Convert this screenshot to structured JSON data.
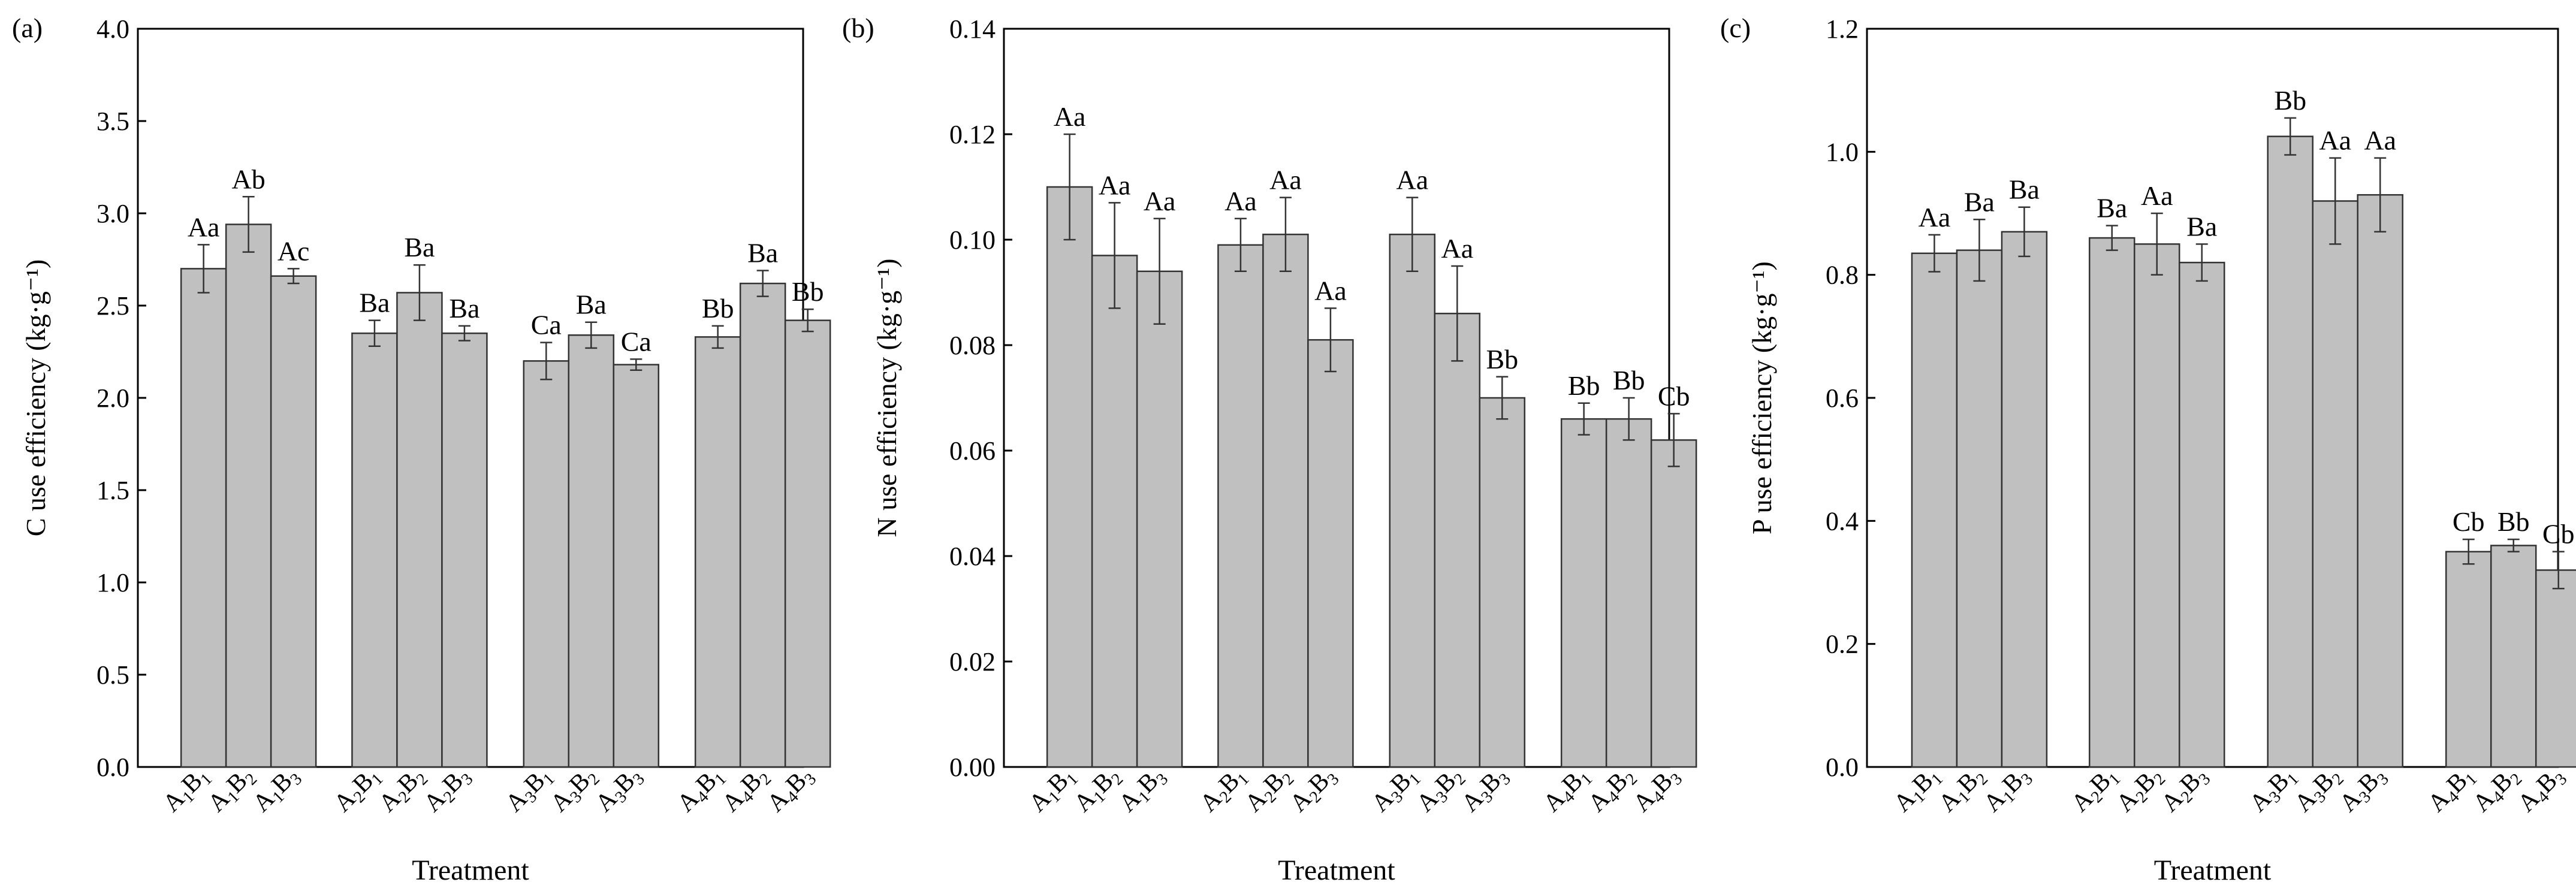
{
  "colors": {
    "bar_fill": "#c0c0c0",
    "bar_stroke": "#333333",
    "axis": "#000000"
  },
  "chart_data": [
    {
      "panel_label": "(a)",
      "type": "bar",
      "title": "",
      "xlabel": "Treatment",
      "ylabel": "C use efficiency (kg·g⁻¹)",
      "ylim": [
        0,
        4.0
      ],
      "yticks": [
        0,
        0.5,
        1.0,
        1.5,
        2.0,
        2.5,
        3.0,
        3.5,
        4.0
      ],
      "ytick_labels": [
        "0.0",
        "0.5",
        "1.0",
        "1.5",
        "2.0",
        "2.5",
        "3.0",
        "3.5",
        "4.0"
      ],
      "groups": [
        {
          "bars": [
            {
              "a": "1",
              "b": "1",
              "value": 2.7,
              "error": 0.13,
              "letter": "Aa"
            },
            {
              "a": "1",
              "b": "2",
              "value": 2.94,
              "error": 0.15,
              "letter": "Ab"
            },
            {
              "a": "1",
              "b": "3",
              "value": 2.66,
              "error": 0.04,
              "letter": "Ac"
            }
          ]
        },
        {
          "bars": [
            {
              "a": "2",
              "b": "1",
              "value": 2.35,
              "error": 0.07,
              "letter": "Ba"
            },
            {
              "a": "2",
              "b": "2",
              "value": 2.57,
              "error": 0.15,
              "letter": "Ba"
            },
            {
              "a": "2",
              "b": "3",
              "value": 2.35,
              "error": 0.04,
              "letter": "Ba"
            }
          ]
        },
        {
          "bars": [
            {
              "a": "3",
              "b": "1",
              "value": 2.2,
              "error": 0.1,
              "letter": "Ca"
            },
            {
              "a": "3",
              "b": "2",
              "value": 2.34,
              "error": 0.07,
              "letter": "Ba"
            },
            {
              "a": "3",
              "b": "3",
              "value": 2.18,
              "error": 0.03,
              "letter": "Ca"
            }
          ]
        },
        {
          "bars": [
            {
              "a": "4",
              "b": "1",
              "value": 2.33,
              "error": 0.06,
              "letter": "Bb"
            },
            {
              "a": "4",
              "b": "2",
              "value": 2.62,
              "error": 0.07,
              "letter": "Ba"
            },
            {
              "a": "4",
              "b": "3",
              "value": 2.42,
              "error": 0.06,
              "letter": "Bb"
            }
          ]
        }
      ]
    },
    {
      "panel_label": "(b)",
      "type": "bar",
      "title": "",
      "xlabel": "Treatment",
      "ylabel": "N use efficiency (kg·g⁻¹)",
      "ylim": [
        0,
        0.14
      ],
      "yticks": [
        0,
        0.02,
        0.04,
        0.06,
        0.08,
        0.1,
        0.12,
        0.14
      ],
      "ytick_labels": [
        "0.00",
        "0.02",
        "0.04",
        "0.06",
        "0.08",
        "0.10",
        "0.12",
        "0.14"
      ],
      "groups": [
        {
          "bars": [
            {
              "a": "1",
              "b": "1",
              "value": 0.11,
              "error": 0.01,
              "letter": "Aa"
            },
            {
              "a": "1",
              "b": "2",
              "value": 0.097,
              "error": 0.01,
              "letter": "Aa"
            },
            {
              "a": "1",
              "b": "3",
              "value": 0.094,
              "error": 0.01,
              "letter": "Aa"
            }
          ]
        },
        {
          "bars": [
            {
              "a": "2",
              "b": "1",
              "value": 0.099,
              "error": 0.005,
              "letter": "Aa"
            },
            {
              "a": "2",
              "b": "2",
              "value": 0.101,
              "error": 0.007,
              "letter": "Aa"
            },
            {
              "a": "2",
              "b": "3",
              "value": 0.081,
              "error": 0.006,
              "letter": "Aa"
            }
          ]
        },
        {
          "bars": [
            {
              "a": "3",
              "b": "1",
              "value": 0.101,
              "error": 0.007,
              "letter": "Aa"
            },
            {
              "a": "3",
              "b": "2",
              "value": 0.086,
              "error": 0.009,
              "letter": "Aa"
            },
            {
              "a": "3",
              "b": "3",
              "value": 0.07,
              "error": 0.004,
              "letter": "Bb"
            }
          ]
        },
        {
          "bars": [
            {
              "a": "4",
              "b": "1",
              "value": 0.066,
              "error": 0.003,
              "letter": "Bb"
            },
            {
              "a": "4",
              "b": "2",
              "value": 0.066,
              "error": 0.004,
              "letter": "Bb"
            },
            {
              "a": "4",
              "b": "3",
              "value": 0.062,
              "error": 0.005,
              "letter": "Cb"
            }
          ]
        }
      ]
    },
    {
      "panel_label": "(c)",
      "type": "bar",
      "title": "",
      "xlabel": "Treatment",
      "ylabel": "P use efficiency (kg·g⁻¹)",
      "ylim": [
        0,
        1.2
      ],
      "yticks": [
        0,
        0.2,
        0.4,
        0.6,
        0.8,
        1.0,
        1.2
      ],
      "ytick_labels": [
        "0.0",
        "0.2",
        "0.4",
        "0.6",
        "0.8",
        "1.0",
        "1.2"
      ],
      "groups": [
        {
          "bars": [
            {
              "a": "1",
              "b": "1",
              "value": 0.835,
              "error": 0.03,
              "letter": "Aa"
            },
            {
              "a": "1",
              "b": "2",
              "value": 0.84,
              "error": 0.05,
              "letter": "Ba"
            },
            {
              "a": "1",
              "b": "3",
              "value": 0.87,
              "error": 0.04,
              "letter": "Ba"
            }
          ]
        },
        {
          "bars": [
            {
              "a": "2",
              "b": "1",
              "value": 0.86,
              "error": 0.02,
              "letter": "Ba"
            },
            {
              "a": "2",
              "b": "2",
              "value": 0.85,
              "error": 0.05,
              "letter": "Aa"
            },
            {
              "a": "2",
              "b": "3",
              "value": 0.82,
              "error": 0.03,
              "letter": "Ba"
            }
          ]
        },
        {
          "bars": [
            {
              "a": "3",
              "b": "1",
              "value": 1.025,
              "error": 0.03,
              "letter": "Bb"
            },
            {
              "a": "3",
              "b": "2",
              "value": 0.92,
              "error": 0.07,
              "letter": "Aa"
            },
            {
              "a": "3",
              "b": "3",
              "value": 0.93,
              "error": 0.06,
              "letter": "Aa"
            }
          ]
        },
        {
          "bars": [
            {
              "a": "4",
              "b": "1",
              "value": 0.35,
              "error": 0.02,
              "letter": "Cb"
            },
            {
              "a": "4",
              "b": "2",
              "value": 0.36,
              "error": 0.01,
              "letter": "Bb"
            },
            {
              "a": "4",
              "b": "3",
              "value": 0.32,
              "error": 0.03,
              "letter": "Cb"
            }
          ]
        }
      ]
    }
  ]
}
